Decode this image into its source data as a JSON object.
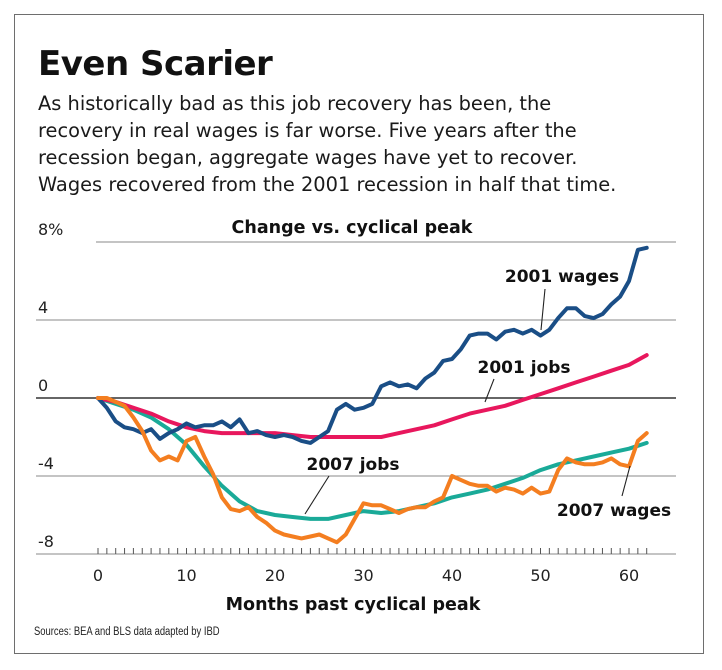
{
  "title": "Even Scarier",
  "subtitle": {
    "lines": [
      "As historically bad as this job recovery has been, the",
      "recovery in real wages is far worse. Five years after the",
      "recession began, aggregate wages have yet to recover.",
      "Wages recovered from the 2001 recession in half that time."
    ]
  },
  "source": "Sources: BEA and BLS data adapted by IBD",
  "chart_data": {
    "type": "line",
    "title": "Change vs. cyclical peak",
    "xlabel": "Months past cyclical peak",
    "ylabel": "",
    "xlim": [
      -3,
      63
    ],
    "ylim": [
      -8,
      8
    ],
    "x_ticks": [
      0,
      10,
      20,
      30,
      40,
      50,
      60
    ],
    "x_tick_labels": [
      "0",
      "10",
      "20",
      "30",
      "40",
      "50",
      "60"
    ],
    "y_ticks": [
      8,
      4,
      0,
      -4,
      -8
    ],
    "y_tick_labels": [
      "8%",
      "4",
      "0",
      "-4",
      "-8"
    ],
    "grid": true,
    "series": [
      {
        "name": "2001 wages",
        "label": "2001 wages",
        "color": "#1a4e86",
        "x": [
          0,
          1,
          2,
          3,
          4,
          5,
          6,
          7,
          8,
          9,
          10,
          11,
          12,
          13,
          14,
          15,
          16,
          17,
          18,
          19,
          20,
          21,
          22,
          23,
          24,
          25,
          26,
          27,
          28,
          29,
          30,
          31,
          32,
          33,
          34,
          35,
          36,
          37,
          38,
          39,
          40,
          41,
          42,
          43,
          44,
          45,
          46,
          47,
          48,
          49,
          50,
          51,
          52,
          53,
          54,
          55,
          56,
          57,
          58,
          59,
          60,
          61,
          62
        ],
        "values": [
          0,
          -0.5,
          -1.2,
          -1.5,
          -1.6,
          -1.8,
          -1.6,
          -2.1,
          -1.8,
          -1.6,
          -1.3,
          -1.5,
          -1.4,
          -1.4,
          -1.2,
          -1.5,
          -1.1,
          -1.8,
          -1.7,
          -1.9,
          -2.0,
          -1.9,
          -2.0,
          -2.2,
          -2.3,
          -2.0,
          -1.7,
          -0.6,
          -0.3,
          -0.6,
          -0.5,
          -0.3,
          0.6,
          0.8,
          0.6,
          0.7,
          0.5,
          1.0,
          1.3,
          1.9,
          2.0,
          2.5,
          3.2,
          3.3,
          3.3,
          3.0,
          3.4,
          3.5,
          3.3,
          3.5,
          3.2,
          3.5,
          4.1,
          4.6,
          4.6,
          4.2,
          4.1,
          4.3,
          4.8,
          5.2,
          6.0,
          7.6,
          7.7
        ]
      },
      {
        "name": "2001 jobs",
        "label": "2001 jobs",
        "color": "#e8175d",
        "x": [
          0,
          2,
          4,
          6,
          8,
          10,
          12,
          14,
          16,
          18,
          20,
          22,
          24,
          26,
          28,
          30,
          32,
          34,
          36,
          38,
          40,
          42,
          44,
          46,
          48,
          50,
          52,
          54,
          56,
          58,
          60,
          62
        ],
        "values": [
          0,
          -0.2,
          -0.5,
          -0.8,
          -1.2,
          -1.5,
          -1.7,
          -1.8,
          -1.8,
          -1.8,
          -1.8,
          -1.9,
          -2.0,
          -2.0,
          -2.0,
          -2.0,
          -2.0,
          -1.8,
          -1.6,
          -1.4,
          -1.1,
          -0.8,
          -0.6,
          -0.4,
          -0.1,
          0.2,
          0.5,
          0.8,
          1.1,
          1.4,
          1.7,
          2.2
        ]
      },
      {
        "name": "2007 jobs",
        "label": "2007 jobs",
        "color": "#1aaa98",
        "x": [
          0,
          2,
          4,
          6,
          8,
          10,
          12,
          14,
          16,
          18,
          20,
          22,
          24,
          26,
          28,
          30,
          32,
          34,
          36,
          38,
          40,
          42,
          44,
          46,
          48,
          50,
          52,
          54,
          56,
          58,
          60,
          62
        ],
        "values": [
          0,
          -0.3,
          -0.6,
          -1.0,
          -1.6,
          -2.4,
          -3.5,
          -4.5,
          -5.3,
          -5.8,
          -6.0,
          -6.1,
          -6.2,
          -6.2,
          -6.0,
          -5.8,
          -5.9,
          -5.8,
          -5.6,
          -5.4,
          -5.1,
          -4.9,
          -4.7,
          -4.4,
          -4.1,
          -3.7,
          -3.4,
          -3.2,
          -3.0,
          -2.8,
          -2.6,
          -2.3
        ]
      },
      {
        "name": "2007 wages",
        "label": "2007 wages",
        "color": "#f47e20",
        "x": [
          0,
          1,
          2,
          3,
          4,
          5,
          6,
          7,
          8,
          9,
          10,
          11,
          12,
          13,
          14,
          15,
          16,
          17,
          18,
          19,
          20,
          21,
          22,
          23,
          24,
          25,
          26,
          27,
          28,
          29,
          30,
          31,
          32,
          33,
          34,
          35,
          36,
          37,
          38,
          39,
          40,
          41,
          42,
          43,
          44,
          45,
          46,
          47,
          48,
          49,
          50,
          51,
          52,
          53,
          54,
          55,
          56,
          57,
          58,
          59,
          60,
          61,
          62
        ],
        "values": [
          0,
          0,
          -0.2,
          -0.4,
          -1.0,
          -1.7,
          -2.7,
          -3.2,
          -3.0,
          -3.2,
          -2.2,
          -2.0,
          -3.0,
          -3.9,
          -5.1,
          -5.7,
          -5.8,
          -5.6,
          -6.1,
          -6.4,
          -6.8,
          -7.0,
          -7.1,
          -7.2,
          -7.1,
          -7.0,
          -7.2,
          -7.4,
          -7.0,
          -6.2,
          -5.4,
          -5.5,
          -5.5,
          -5.7,
          -5.9,
          -5.7,
          -5.6,
          -5.6,
          -5.3,
          -5.1,
          -4.0,
          -4.2,
          -4.4,
          -4.5,
          -4.5,
          -4.8,
          -4.6,
          -4.7,
          -4.9,
          -4.6,
          -4.9,
          -4.8,
          -3.7,
          -3.1,
          -3.3,
          -3.4,
          -3.4,
          -3.3,
          -3.1,
          -3.4,
          -3.5,
          -2.2,
          -1.8
        ]
      }
    ]
  }
}
